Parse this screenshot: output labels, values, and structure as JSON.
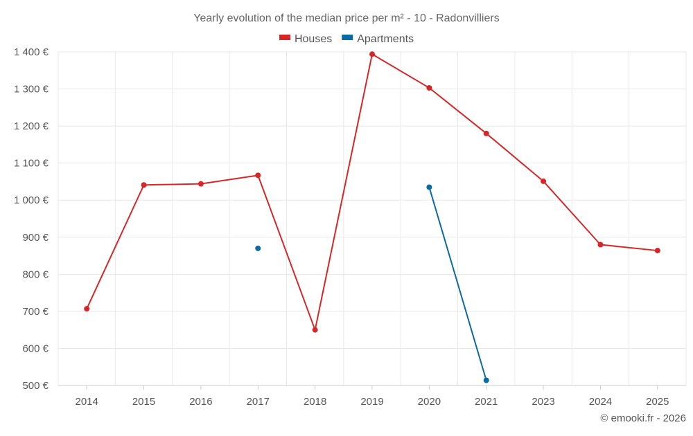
{
  "chart_data": {
    "type": "line",
    "title": "Yearly evolution of the median price per m² - 10 - Radonvilliers",
    "categories": [
      "2014",
      "2015",
      "2016",
      "2017",
      "2018",
      "2019",
      "2020",
      "2021",
      "2023",
      "2024",
      "2025"
    ],
    "series": [
      {
        "name": "Houses",
        "color": "#d62728",
        "values": [
          707,
          1041,
          1044,
          1067,
          650,
          1394,
          1303,
          1180,
          1051,
          880,
          864
        ]
      },
      {
        "name": "Apartments",
        "color": "#0a6aa1",
        "values": [
          null,
          null,
          null,
          870,
          null,
          null,
          1035,
          514,
          null,
          null,
          null
        ]
      }
    ],
    "ylim": [
      500,
      1400
    ],
    "yticks": [
      500,
      600,
      700,
      800,
      900,
      1000,
      1100,
      1200,
      1300,
      1400
    ],
    "ytick_labels": [
      "500 €",
      "600 €",
      "700 €",
      "800 €",
      "900 €",
      "1 000 €",
      "1 100 €",
      "1 200 €",
      "1 300 €",
      "1 400 €"
    ],
    "grid": true,
    "legend_position": "top-center",
    "credit": "© emooki.fr - 2026"
  }
}
